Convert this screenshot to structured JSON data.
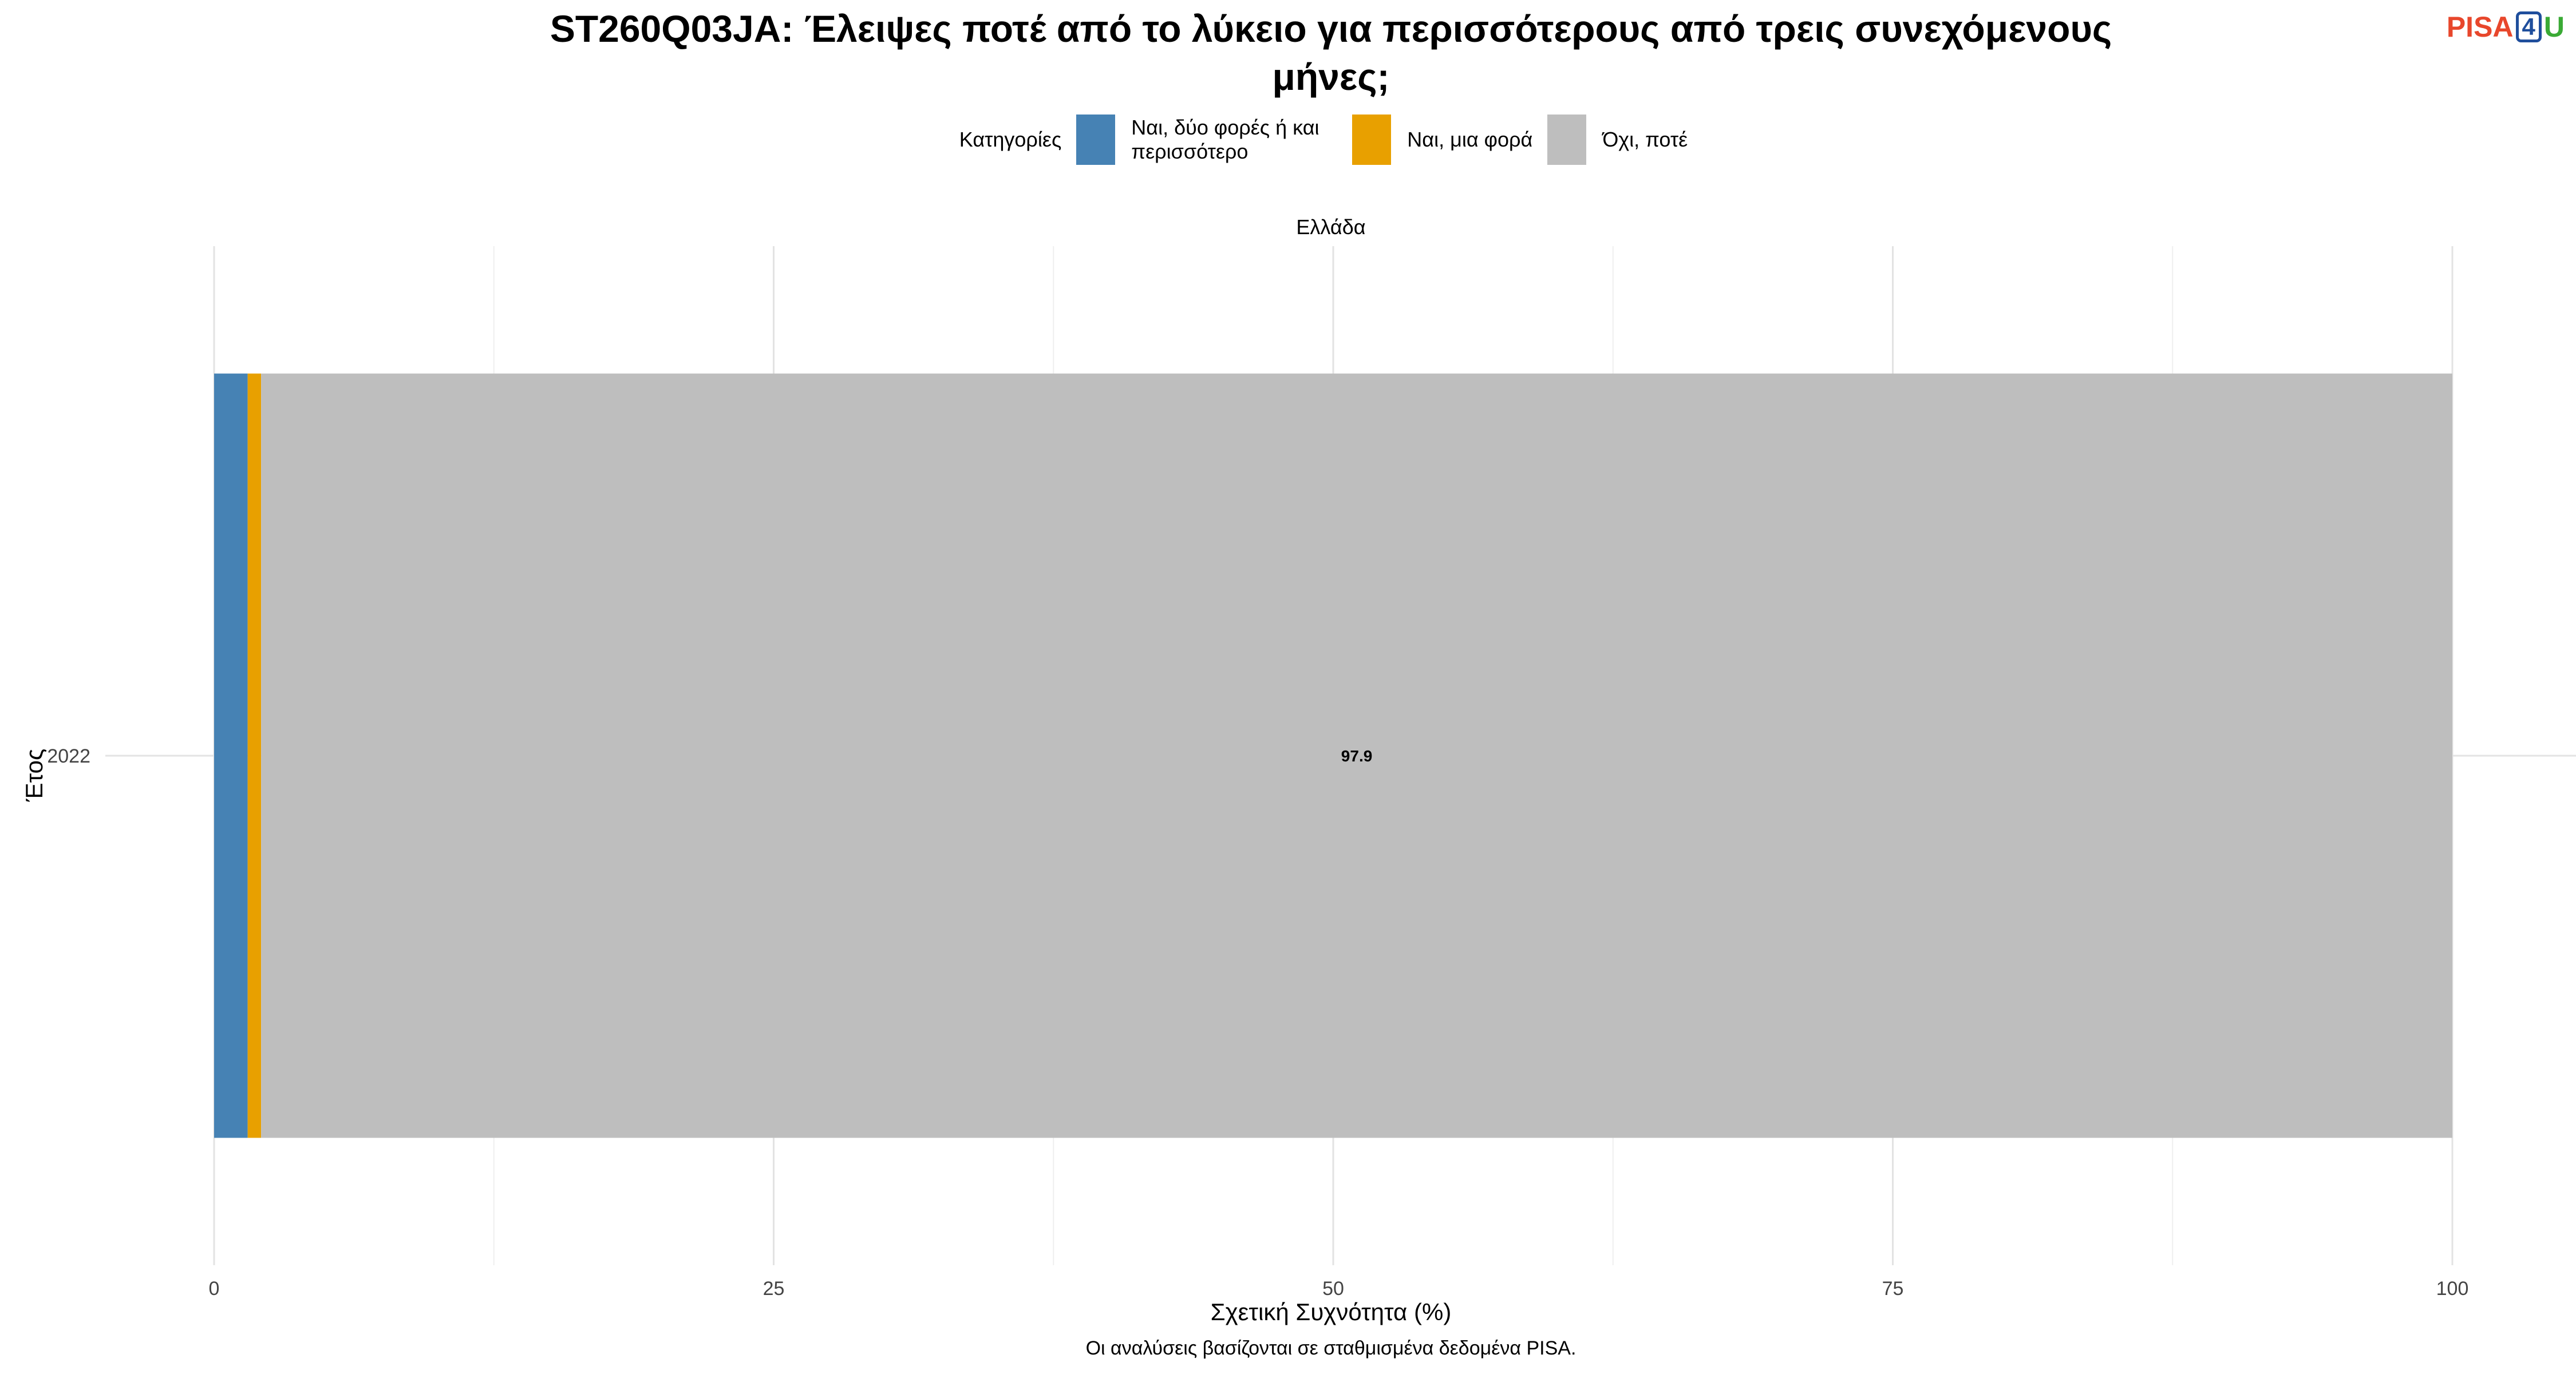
{
  "title_lines": [
    "ST260Q03JA: Έλειψες ποτέ από το λύκειο για περισσότερους από τρεις συνεχόμενους",
    "μήνες;"
  ],
  "logo": {
    "part1": "PISA",
    "part2": "4",
    "part3": "U"
  },
  "legend": {
    "title": "Κατηγορίες",
    "items": [
      {
        "label": "Ναι, δύο φορές ή και περισσότερο",
        "color": "#4682b4"
      },
      {
        "label": "Ναι, μια φορά",
        "color": "#e8a000"
      },
      {
        "label": "Όχι, ποτέ",
        "color": "#bebebe"
      }
    ]
  },
  "facet_label": "Ελλάδα",
  "caption": "Οι αναλύσεις βασίζονται σε σταθμισμένα δεδομένα PISA.",
  "chart_data": {
    "type": "bar",
    "orientation": "horizontal",
    "stacked": true,
    "categories": [
      "2022"
    ],
    "series": [
      {
        "name": "Ναι, δύο φορές ή και περισσότερο",
        "values": [
          1.5
        ],
        "color": "#4682b4"
      },
      {
        "name": "Ναι, μια φορά",
        "values": [
          0.6
        ],
        "color": "#e8a000"
      },
      {
        "name": "Όχι, ποτέ",
        "values": [
          97.9
        ],
        "color": "#bebebe"
      }
    ],
    "data_labels": [
      {
        "series": "Όχι, ποτέ",
        "category": "2022",
        "text": "97.9"
      }
    ],
    "xlabel": "Σχετική Συχνότητα (%)",
    "ylabel": "Έτος",
    "xlim": [
      0,
      100
    ],
    "xticks": [
      0,
      25,
      50,
      75,
      100
    ],
    "grid": true,
    "legend_position": "top"
  }
}
